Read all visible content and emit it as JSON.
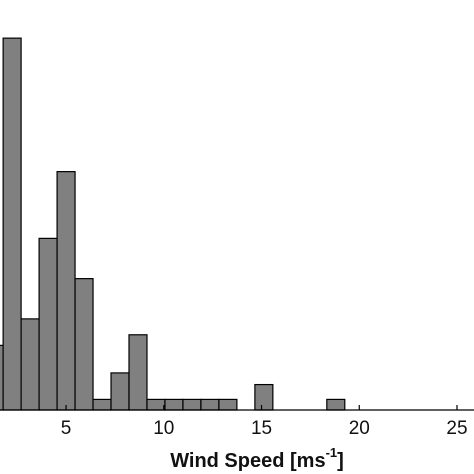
{
  "chart_data": {
    "type": "histogram",
    "x_label": {
      "text": "Wind Speed [ms",
      "superscript": "-1",
      "suffix": "]"
    },
    "bins": [
      0.86,
      1.78,
      2.7,
      3.62,
      4.54,
      5.46,
      6.38,
      7.3,
      8.22,
      9.14,
      10.06,
      10.98,
      11.9,
      12.82,
      13.74,
      14.66,
      15.58,
      16.5,
      17.42,
      18.34,
      19.26
    ],
    "values": [
      6.1,
      35.1,
      8.6,
      16.2,
      22.5,
      12.4,
      1,
      3.5,
      7.1,
      1,
      1,
      1,
      1,
      1,
      0,
      2.4,
      0,
      0,
      0,
      1
    ],
    "color": "#808080",
    "xlim": [
      1.62,
      25.87
    ],
    "xticks": [
      5,
      10,
      15,
      20,
      25
    ],
    "ylim": [
      0,
      38.7
    ]
  }
}
